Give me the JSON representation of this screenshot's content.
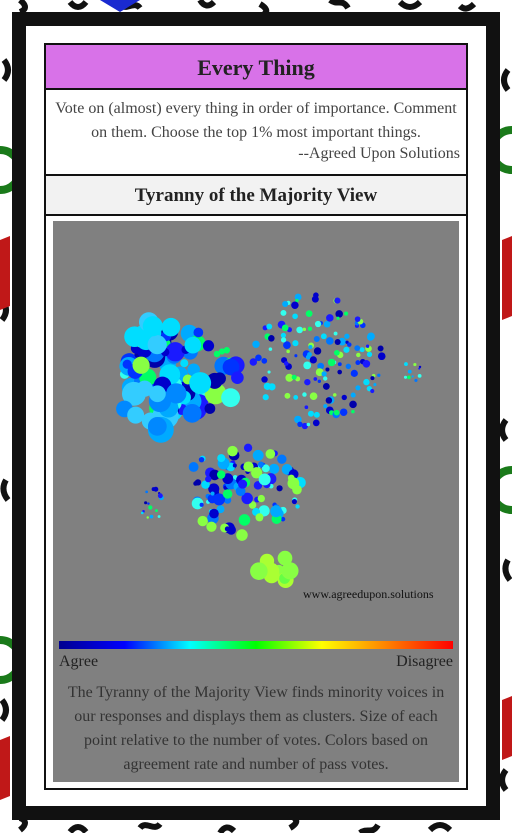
{
  "header": {
    "title": "Every Thing"
  },
  "description": {
    "text": "Vote on (almost) every thing in order of importance. Comment on them. Choose the top 1% most important things.",
    "attribution": "--Agreed Upon Solutions"
  },
  "view": {
    "title": "Tyranny of the Majority View",
    "watermark": "www.agreedupon.solutions",
    "scale_left": "Agree",
    "scale_right": "Disagree",
    "caption": "The Tyranny of the Majority View finds minority voices in our responses and displays them as clusters. Size of each point relative to the number of votes. Colors based on agreement rate and number of pass votes."
  }
}
